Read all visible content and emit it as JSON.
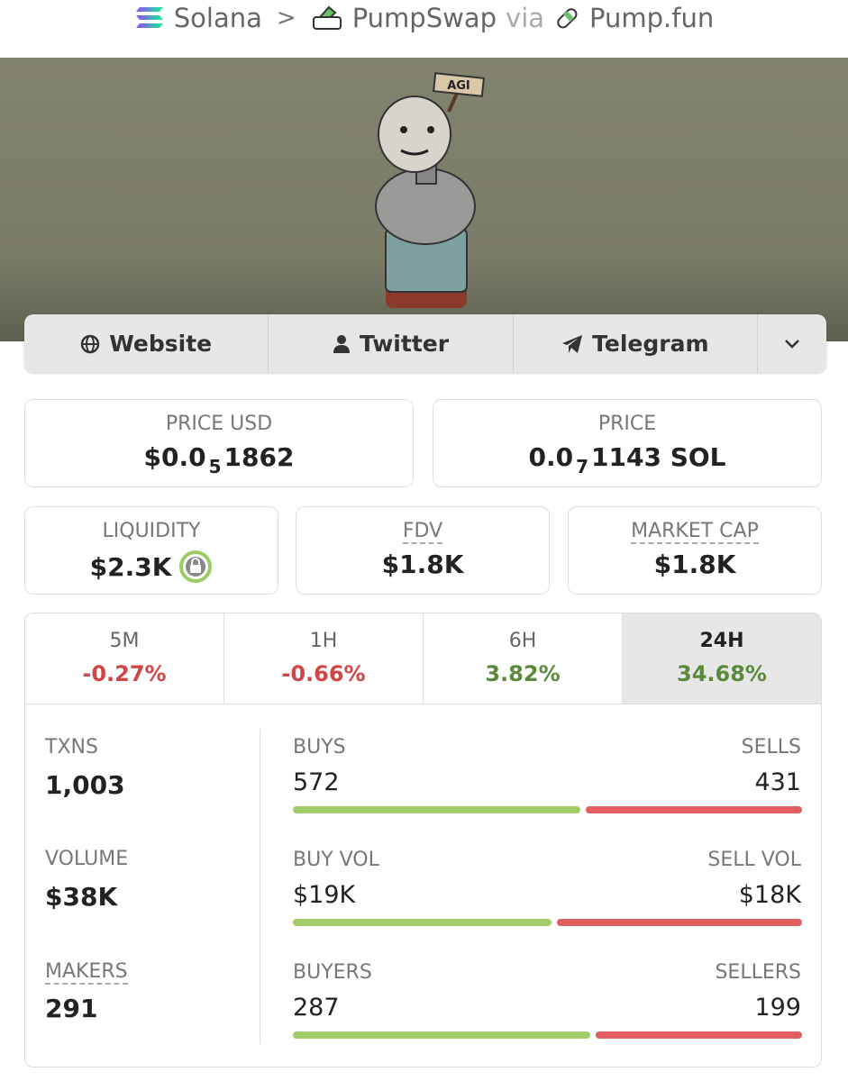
{
  "breadcrumb": {
    "chain": "Solana",
    "dex": "PumpSwap",
    "via": "via",
    "launchpad": "Pump.fun"
  },
  "banner": {
    "sign": "AGI"
  },
  "links": [
    "Website",
    "Twitter",
    "Telegram"
  ],
  "price_usd": {
    "label": "PRICE USD",
    "prefix": "$0.0",
    "zeros": "5",
    "digits": "1862"
  },
  "price": {
    "label": "PRICE",
    "prefix": "0.0",
    "zeros": "7",
    "digits": "1143 SOL"
  },
  "liquidity": {
    "label": "LIQUIDITY",
    "value": "$2.3K"
  },
  "fdv": {
    "label": "FDV",
    "value": "$1.8K"
  },
  "market_cap": {
    "label": "MARKET CAP",
    "value": "$1.8K"
  },
  "periods": [
    {
      "label": "5M",
      "change": "-0.27%"
    },
    {
      "label": "1H",
      "change": "-0.66%"
    },
    {
      "label": "6H",
      "change": "3.82%"
    },
    {
      "label": "24H",
      "change": "34.68%"
    }
  ],
  "active_period": 3,
  "stats": {
    "txns": {
      "label": "TXNS",
      "value": {
        "value": 1003,
        "label": "1,003"
      }
    },
    "volume": {
      "label": "VOLUME",
      "value": "$38K"
    },
    "makers": {
      "label": "MAKERS",
      "value": 291
    }
  },
  "splits": [
    {
      "left_label": "BUYS",
      "left": 572,
      "right_label": "SELLS",
      "right": 431
    },
    {
      "left_label": "BUY VOL",
      "left": {
        "value": 19000,
        "label": "$19K"
      },
      "right_label": "SELL VOL",
      "right": {
        "value": 18000,
        "label": "$18K"
      }
    },
    {
      "left_label": "BUYERS",
      "left": 287,
      "right_label": "SELLERS",
      "right": 199
    }
  ]
}
